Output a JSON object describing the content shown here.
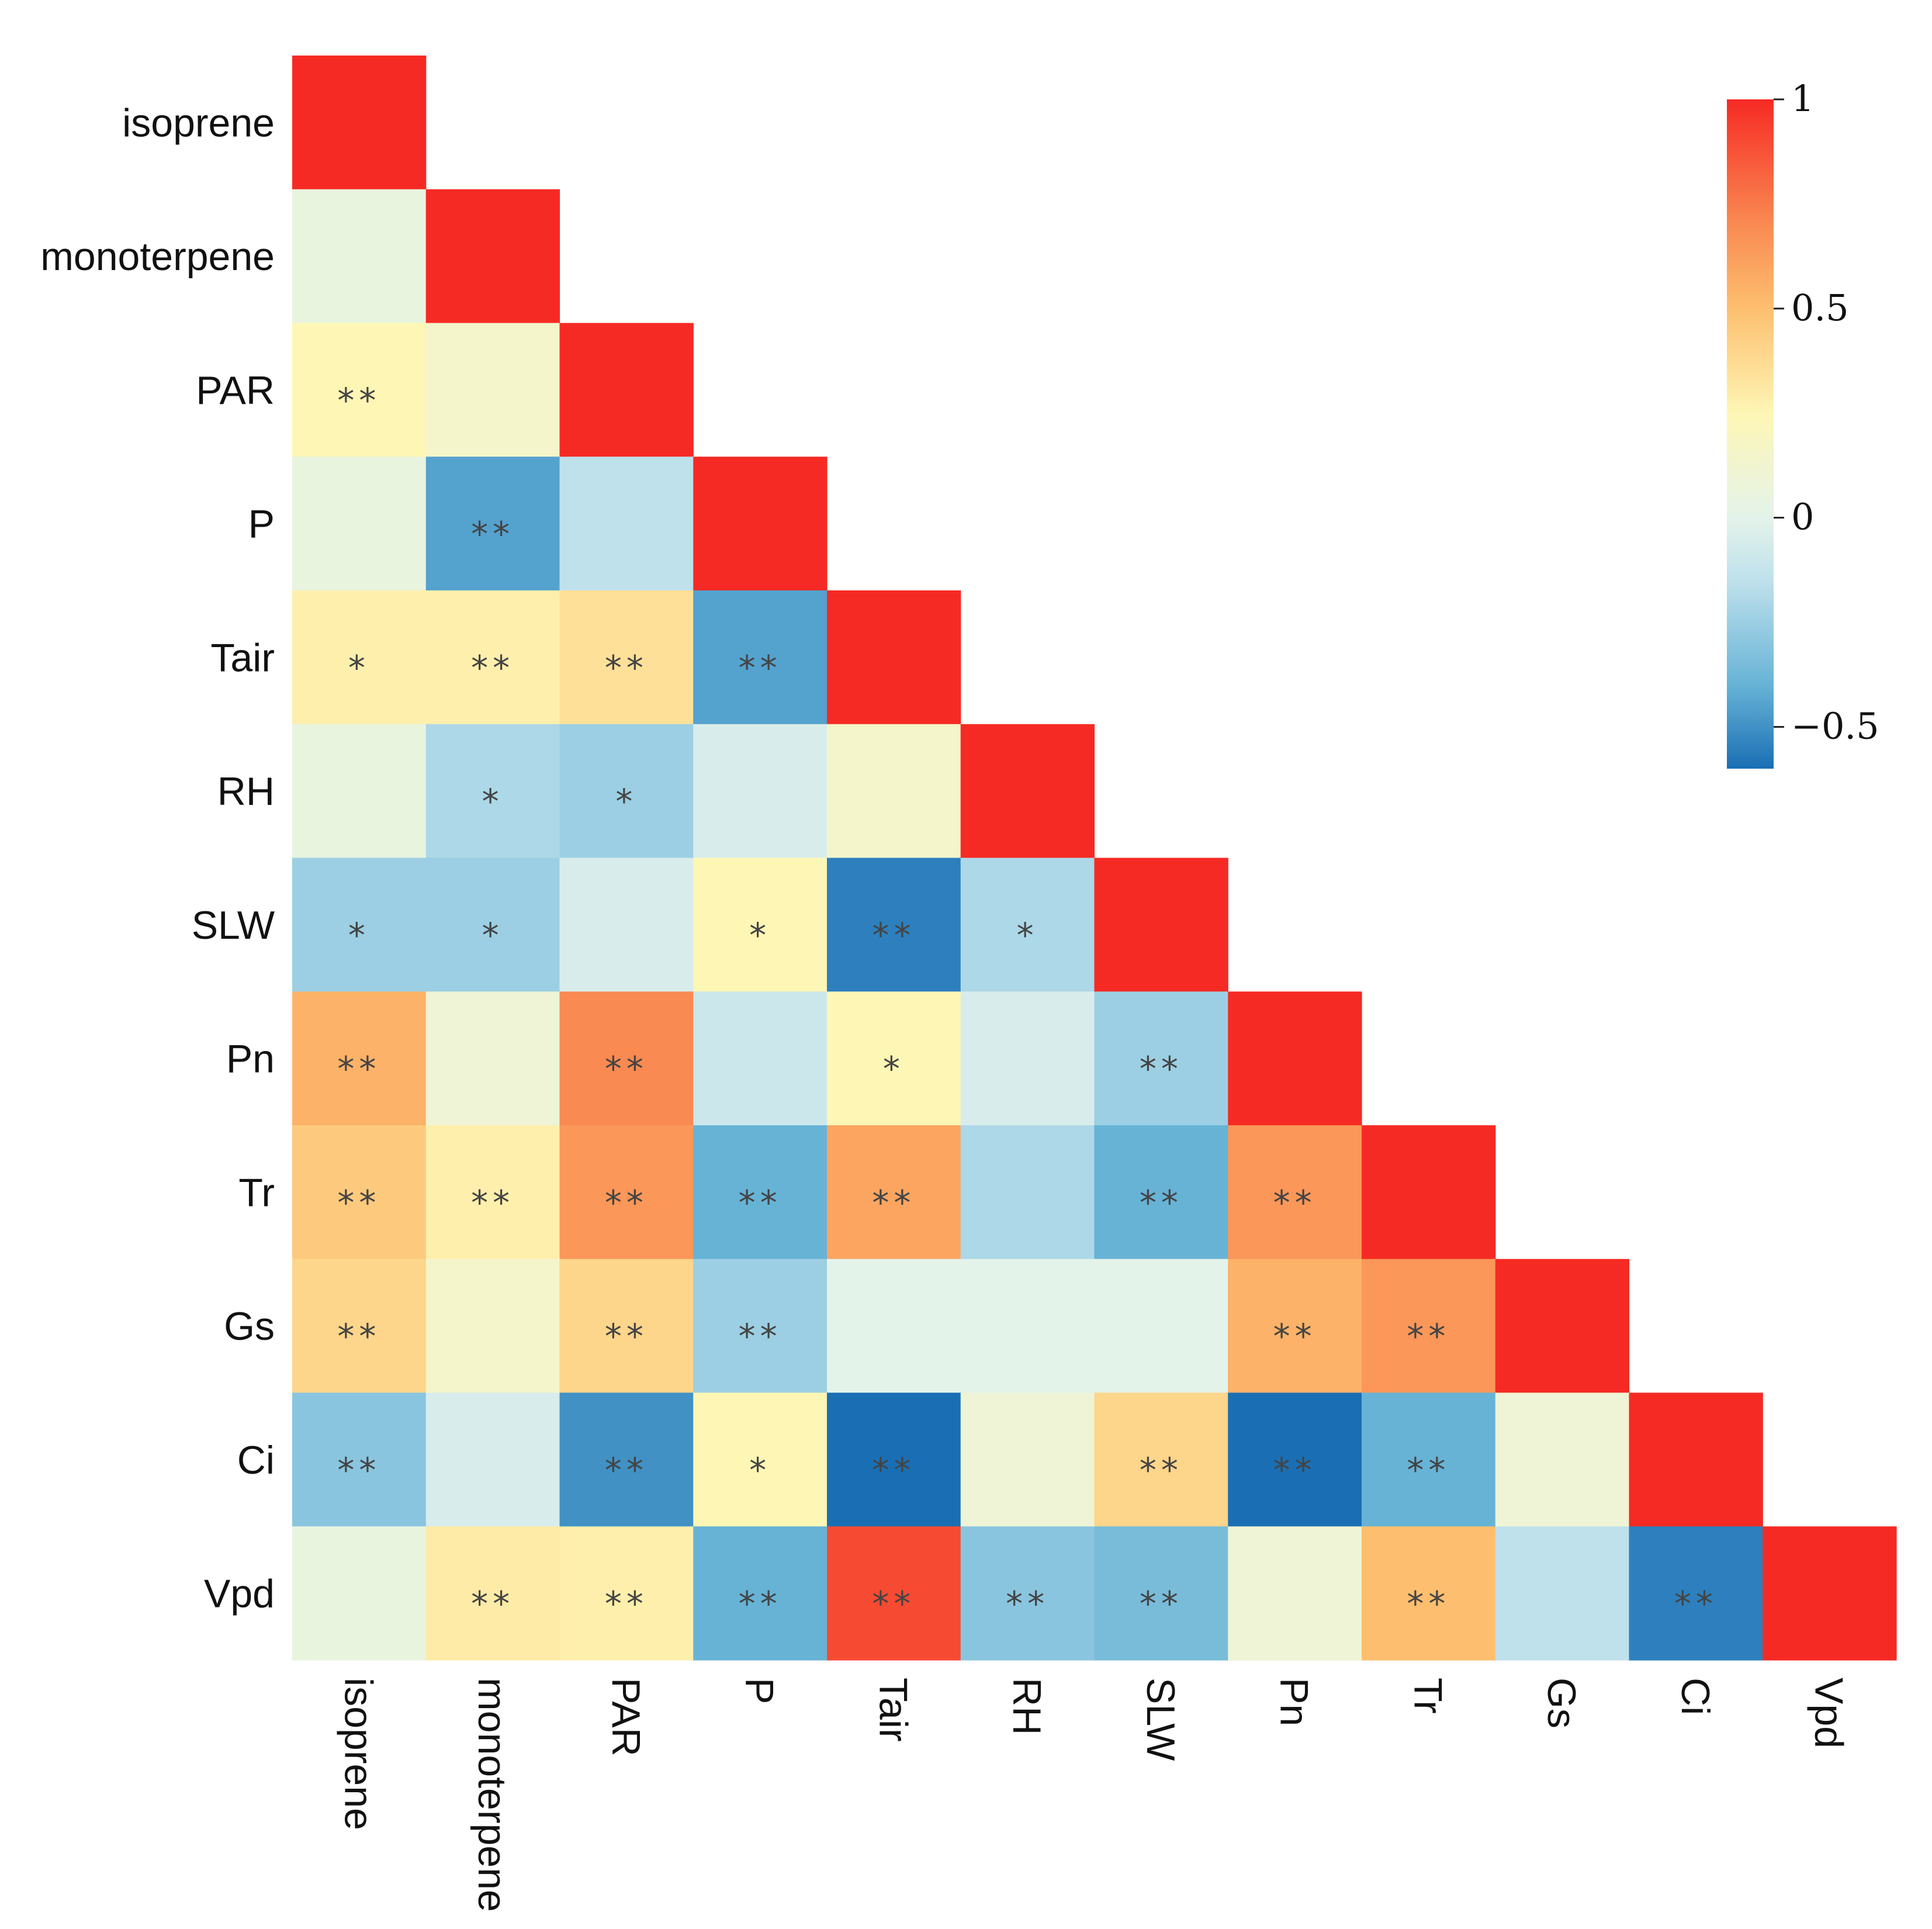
{
  "chart_data": {
    "type": "heatmap",
    "title": "",
    "variables": [
      "isoprene",
      "monoterpene",
      "PAR",
      "P",
      "Tair",
      "RH",
      "SLW",
      "Pn",
      "Tr",
      "Gs",
      "Ci",
      "Vpd"
    ],
    "layout": "lower-triangle",
    "matrix": [
      [
        1
      ],
      [
        0.05,
        1
      ],
      [
        0.25,
        0.15,
        1
      ],
      [
        0.05,
        -0.45,
        -0.15,
        1
      ],
      [
        0.28,
        0.28,
        0.35,
        -0.45,
        1
      ],
      [
        0.05,
        -0.2,
        -0.25,
        -0.05,
        0.15,
        1
      ],
      [
        -0.25,
        -0.25,
        -0.05,
        0.25,
        -0.55,
        -0.2,
        1
      ],
      [
        0.55,
        0.1,
        0.7,
        -0.1,
        0.25,
        -0.05,
        -0.25,
        1
      ],
      [
        0.45,
        0.28,
        0.65,
        -0.4,
        0.6,
        -0.2,
        -0.4,
        0.65,
        1
      ],
      [
        0.4,
        0.15,
        0.4,
        -0.25,
        0,
        0,
        0,
        0.55,
        0.65,
        1
      ],
      [
        -0.3,
        -0.05,
        -0.5,
        0.25,
        -0.6,
        0.1,
        0.4,
        -0.7,
        -0.4,
        0.1,
        1
      ],
      [
        0.05,
        0.3,
        0.28,
        -0.4,
        0.9,
        -0.3,
        -0.35,
        0.1,
        0.5,
        -0.15,
        -0.55,
        1
      ]
    ],
    "significance": [
      [
        ""
      ],
      [
        "",
        ""
      ],
      [
        "**",
        "",
        ""
      ],
      [
        "",
        "**",
        "",
        ""
      ],
      [
        "*",
        "**",
        "**",
        "**",
        ""
      ],
      [
        "",
        "*",
        "*",
        "",
        "",
        ""
      ],
      [
        "*",
        "*",
        "",
        "*",
        "**",
        "*",
        ""
      ],
      [
        "**",
        "",
        "**",
        "",
        "*",
        "",
        "**",
        ""
      ],
      [
        "**",
        "**",
        "**",
        "**",
        "**",
        "",
        "**",
        "**",
        ""
      ],
      [
        "**",
        "",
        "**",
        "**",
        "",
        "",
        "",
        "**",
        "**",
        ""
      ],
      [
        "**",
        "",
        "**",
        "*",
        "**",
        "",
        "**",
        "**",
        "**",
        "",
        ""
      ],
      [
        "",
        "**",
        "**",
        "**",
        "**",
        "**",
        "**",
        "",
        "**",
        "",
        "**",
        ""
      ]
    ],
    "colorbar": {
      "range": [
        -0.6,
        1
      ],
      "ticks": [
        1,
        0.5,
        0,
        -0.5
      ],
      "tick_labels": [
        "1",
        "0.5",
        "0",
        "−0.5"
      ],
      "colors": {
        "min": "#1a6fb4",
        "low": "#67b3d6",
        "mid_low": "#bfe1ec",
        "zero": "#e4f3ea",
        "mid_high": "#fef6b5",
        "high": "#fdbf6f",
        "upper": "#f98a52",
        "max": "#f62a24"
      }
    }
  }
}
